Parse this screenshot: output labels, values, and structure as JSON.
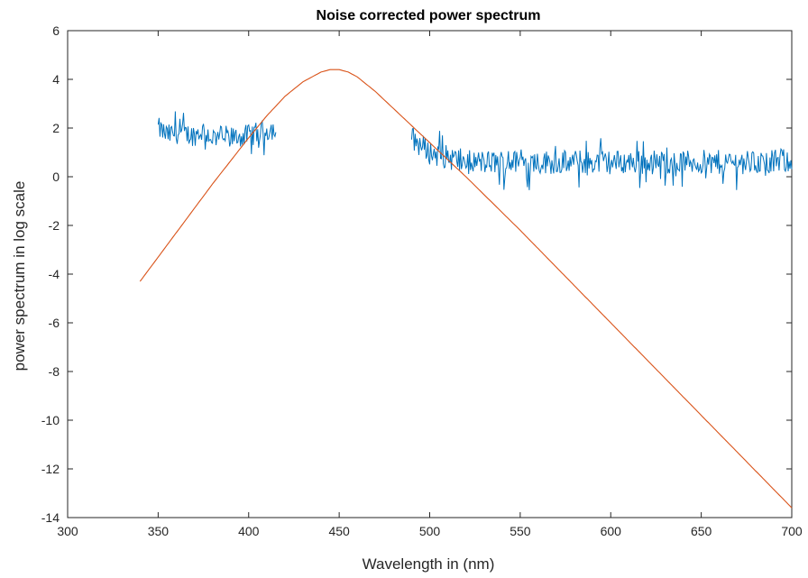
{
  "chart_data": {
    "type": "line",
    "title": "Noise corrected power spectrum",
    "xlabel": "Wavelength in (nm)",
    "ylabel": "power spectrum in log scale",
    "xlim": [
      300,
      700
    ],
    "ylim": [
      -14,
      6
    ],
    "xticks": [
      300,
      350,
      400,
      450,
      500,
      550,
      600,
      650,
      700
    ],
    "yticks": [
      -14,
      -12,
      -10,
      -8,
      -6,
      -4,
      -2,
      0,
      2,
      4,
      6
    ],
    "grid": false,
    "legend": "none",
    "series": [
      {
        "color": "#0072BD",
        "style": "noisy",
        "segments": [
          {
            "x": [
              350,
              355,
              360,
              365,
              370,
              375,
              380,
              385,
              390,
              395,
              400,
              405,
              410,
              415
            ],
            "y": [
              2.0,
              1.7,
              1.8,
              1.75,
              1.7,
              1.9,
              1.6,
              1.7,
              1.6,
              1.65,
              1.7,
              1.8,
              1.9,
              2.0
            ],
            "noise": 0.45
          },
          {
            "x": [
              490,
              495,
              500,
              505,
              510,
              515,
              520,
              530,
              540,
              550,
              560,
              570,
              580,
              590,
              600,
              610,
              620,
              630,
              640,
              650,
              660,
              670,
              680,
              690,
              700
            ],
            "y": [
              1.6,
              1.3,
              1.0,
              0.9,
              0.8,
              0.7,
              0.6,
              0.6,
              0.6,
              0.6,
              0.6,
              0.6,
              0.6,
              0.6,
              0.6,
              0.6,
              0.6,
              0.6,
              0.6,
              0.6,
              0.6,
              0.6,
              0.6,
              0.6,
              0.7
            ],
            "noise": 0.5
          }
        ]
      },
      {
        "color": "#D95319",
        "style": "smooth",
        "x": [
          340,
          360,
          380,
          400,
          410,
          420,
          430,
          440,
          445,
          450,
          455,
          460,
          470,
          480,
          490,
          500,
          510,
          520,
          550,
          600,
          650,
          700
        ],
        "y": [
          -4.3,
          -2.3,
          -0.3,
          1.6,
          2.5,
          3.3,
          3.9,
          4.3,
          4.4,
          4.4,
          4.3,
          4.1,
          3.5,
          2.8,
          2.1,
          1.4,
          0.7,
          0.0,
          -2.2,
          -6.0,
          -9.8,
          -13.6
        ]
      }
    ]
  }
}
